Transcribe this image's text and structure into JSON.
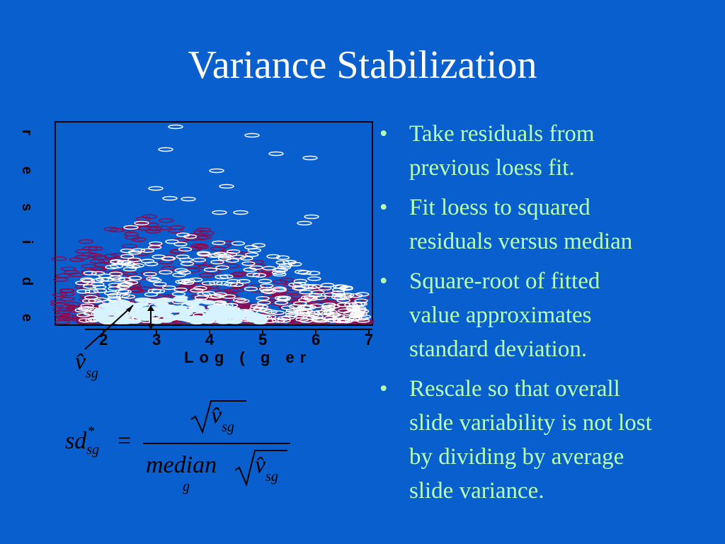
{
  "title": "Variance Stabilization",
  "bullets": [
    {
      "line1": "Take residuals from",
      "line2": "previous loess fit."
    },
    {
      "line1": "Fit loess to squared",
      "line2": "residuals versus median"
    },
    {
      "line1": "Square-root of fitted",
      "line2": "value approximates",
      "line3": "standard deviation."
    },
    {
      "line1": "Rescale so that overall",
      "line2": "slide variability is not lost",
      "line3": "by dividing by average",
      "line4": "slide variance."
    }
  ],
  "plot": {
    "x_ticks": [
      "2",
      "3",
      "4",
      "5",
      "6",
      "7"
    ],
    "x_label": "Log ( g er",
    "y_label_chars": [
      "r",
      "e",
      "s",
      "i",
      "d",
      "e"
    ],
    "point_colors": {
      "outer": "#8b0a50",
      "inner": "#ffffff",
      "mid": "#d7f3ff"
    }
  },
  "annotation": {
    "vhat": "v̂",
    "sub": "sg"
  },
  "formula": {
    "lhs": "sd",
    "lhs_sup": "*",
    "lhs_sub": "sg",
    "equals": "=",
    "num": "v̂",
    "num_sub": "sg",
    "den_word": "median",
    "den_sub": "g",
    "den_v": "v̂",
    "den_v_sub": "sg"
  }
}
